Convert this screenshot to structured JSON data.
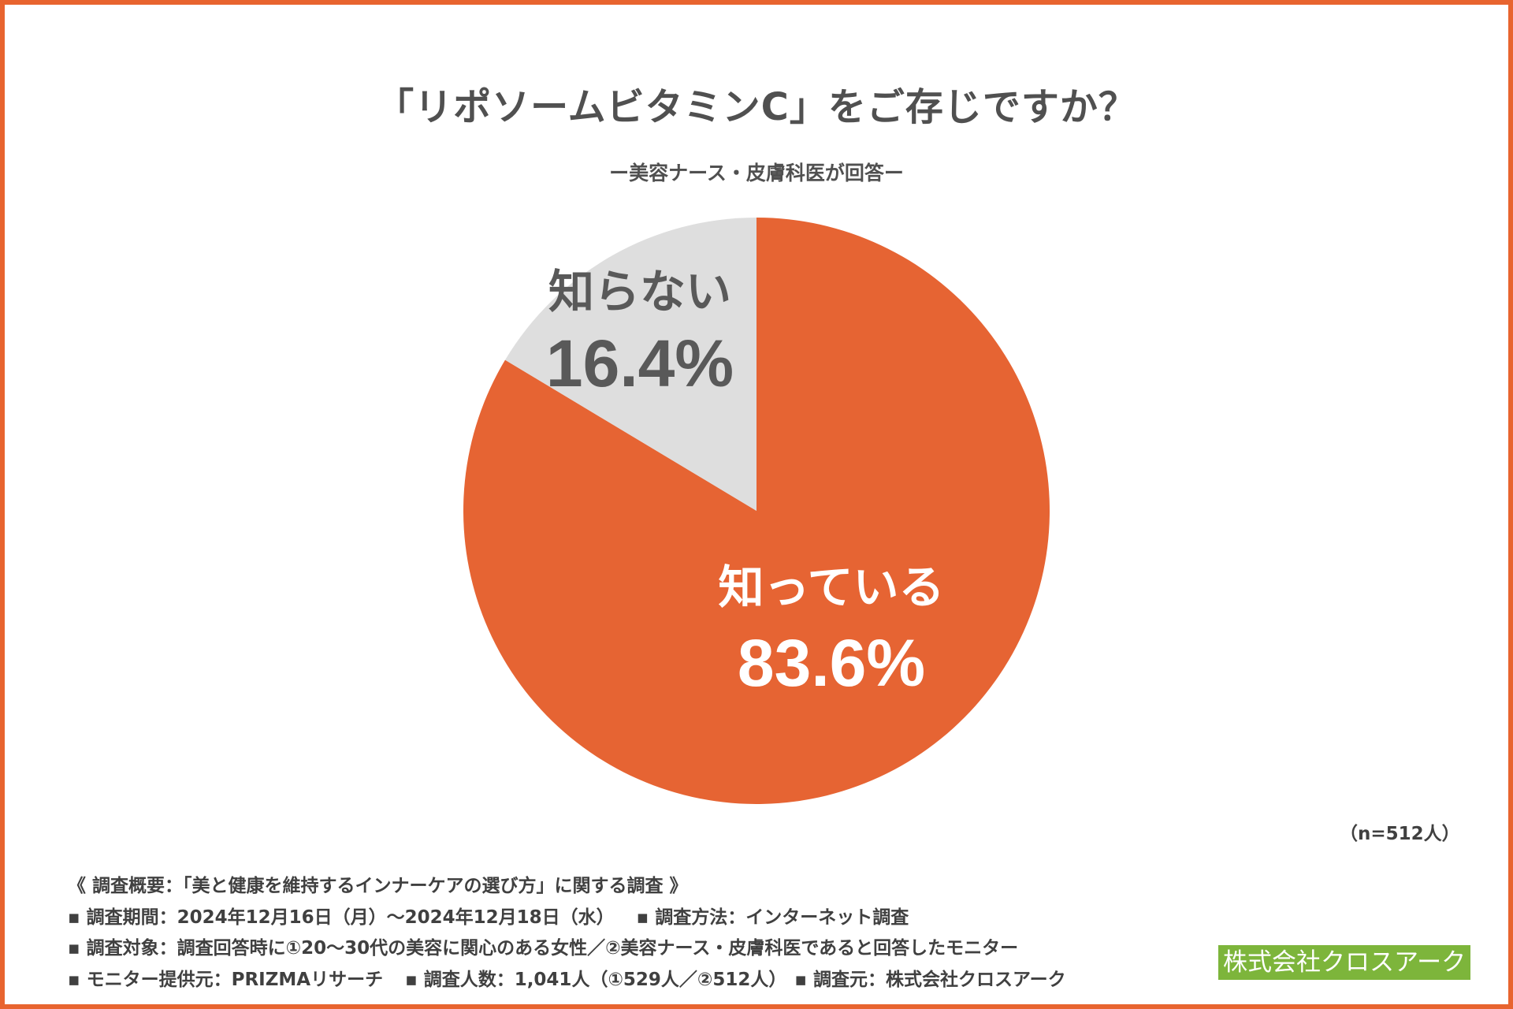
{
  "chart_data": {
    "type": "pie",
    "title": "「リポソームビタミンC」をご存じですか？",
    "subtitle": "ー美容ナース・皮膚科医が回答ー",
    "sample_note": "（n=512人）",
    "slices": [
      {
        "label": "知っている",
        "value": 83.6,
        "value_label": "83.6%",
        "color": "#E66433",
        "text_color": "#FFFFFF"
      },
      {
        "label": "知らない",
        "value": 16.4,
        "value_label": "16.4%",
        "color": "#DEDEDE",
        "text_color": "#595959"
      }
    ],
    "start": "12 o'clock, clockwise",
    "legend": "none"
  },
  "survey": {
    "heading": "《 調査概要：「美と健康を維持するインナーケアの選び方」に関する調査 》",
    "period": "▪ 調査期間：2024年12月16日（月）～2024年12月18日（水）",
    "method": "▪ 調査方法：インターネット調査",
    "target": "▪ 調査対象：調査回答時に①20～30代の美容に関心のある女性／②美容ナース・皮膚科医であると回答したモニター",
    "provider": "▪ モニター提供元：PRIZMAリサーチ",
    "count": "▪ 調査人数：1,041人（①529人／②512人）",
    "source": "▪ 調査元：株式会社クロスアーク"
  },
  "company": "株式会社クロスアーク",
  "colors": {
    "accent": "#E8642F",
    "brand_green": "#7DB53B"
  }
}
